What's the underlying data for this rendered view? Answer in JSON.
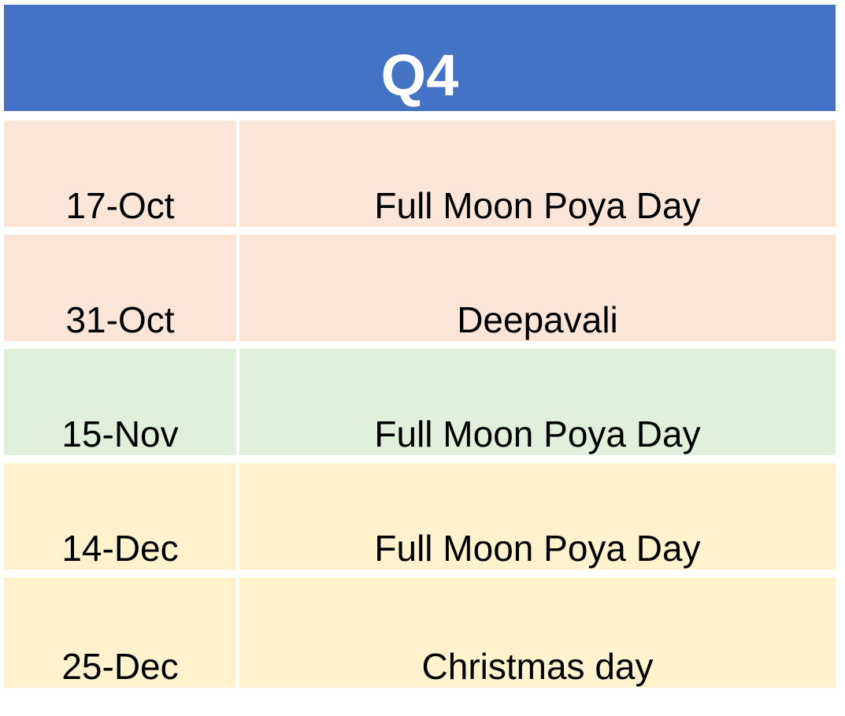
{
  "header": {
    "title": "Q4"
  },
  "colors": {
    "header_bg": "#4472c4",
    "october_bg": "#fbe5d6",
    "november_bg": "#e2efda",
    "december_bg": "#fff2cc"
  },
  "rows": [
    {
      "date": "17-Oct",
      "event": "Full Moon Poya Day",
      "color": "#fbe5d6"
    },
    {
      "date": "31-Oct",
      "event": "Deepavali",
      "color": "#fbe5d6"
    },
    {
      "date": "15-Nov",
      "event": "Full Moon Poya Day",
      "color": "#e2efda"
    },
    {
      "date": "14-Dec",
      "event": "Full Moon Poya Day",
      "color": "#fff2cc"
    },
    {
      "date": "25-Dec",
      "event": "Christmas day",
      "color": "#fff2cc"
    }
  ]
}
